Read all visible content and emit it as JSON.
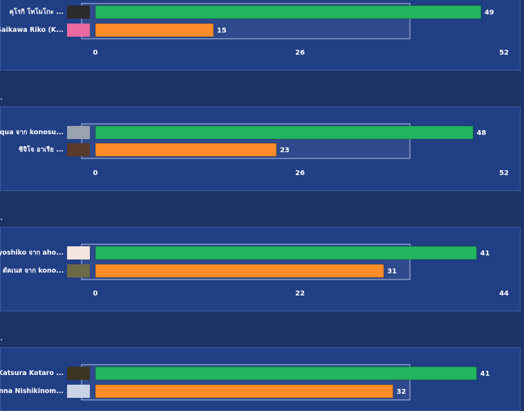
{
  "colors": {
    "series_a": "#23b460",
    "series_b": "#ff8c28",
    "panel_bg": "#213f85",
    "page_bg": "#1c3366"
  },
  "chart_data": [
    {
      "type": "bar",
      "orientation": "horizontal",
      "categories": [
        "คุโรกิ โทโมโกะ ...",
        "Saikawa Riko (K..."
      ],
      "values": [
        49,
        15
      ],
      "xlim": [
        0,
        52
      ],
      "xticks": [
        "0",
        "26",
        "52"
      ],
      "grid": false
    },
    {
      "type": "bar",
      "orientation": "horizontal",
      "categories": [
        "aqua จาก konosu...",
        "ชิจิโจ อาเรีย  ..."
      ],
      "values": [
        48,
        23
      ],
      "xlim": [
        0,
        52
      ],
      "xticks": [
        "0",
        "26",
        "52"
      ],
      "grid": false
    },
    {
      "type": "bar",
      "orientation": "horizontal",
      "categories": [
        "yoshiko จาก aho...",
        "ดัคเนส จาก kono..."
      ],
      "values": [
        41,
        31
      ],
      "xlim": [
        0,
        44
      ],
      "xticks": [
        "0",
        "22",
        "44"
      ],
      "grid": false
    },
    {
      "type": "bar",
      "orientation": "horizontal",
      "categories": [
        "Katsura Kotaro ...",
        "Anna Nishikinom..."
      ],
      "values": [
        41,
        32
      ],
      "xlim": [
        0,
        44
      ],
      "xticks": [
        "0",
        "22",
        "44"
      ],
      "grid": false
    }
  ]
}
